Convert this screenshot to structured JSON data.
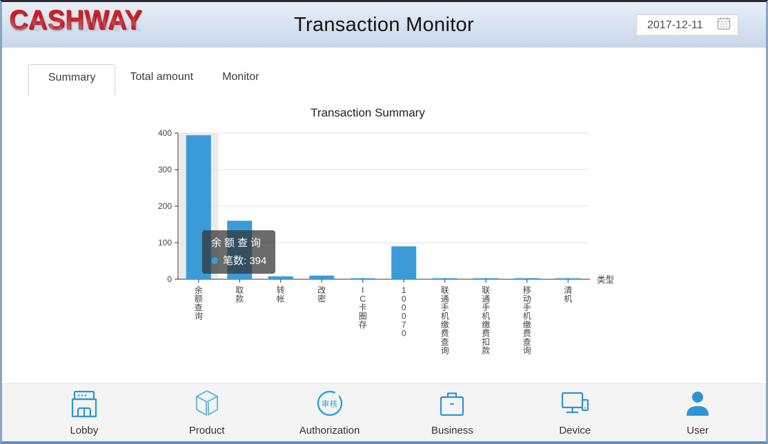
{
  "header": {
    "logo": "CASHWAY",
    "title": "Transaction Monitor",
    "date": "2017-12-11"
  },
  "tabs": [
    {
      "label": "Summary",
      "active": true
    },
    {
      "label": "Total amount",
      "active": false
    },
    {
      "label": "Monitor",
      "active": false
    }
  ],
  "chart_data": {
    "type": "bar",
    "title": "Transaction Summary",
    "categories": [
      "余额查询",
      "取款",
      "转帐",
      "改密",
      "IC卡圈存",
      "100070",
      "联通手机缴费查询",
      "联通手机缴费扣款",
      "移动手机缴费查询",
      "清机"
    ],
    "values": [
      394,
      160,
      8,
      10,
      2,
      90,
      2,
      2,
      3,
      1
    ],
    "series_name": "笔数",
    "xlabel": "类型",
    "ylabel": "",
    "ylim": [
      0,
      400
    ],
    "yticks": [
      0,
      100,
      200,
      300,
      400
    ],
    "grid": true,
    "legend": "none",
    "bar_color": "#3b9bd8",
    "highlight_index": 0
  },
  "tooltip": {
    "title": "余额查询",
    "text": "笔数: 394",
    "dot_color": "#3b9bd8"
  },
  "nav": {
    "items": [
      {
        "label": "Lobby",
        "icon": "storefront-icon"
      },
      {
        "label": "Product",
        "icon": "cube-icon"
      },
      {
        "label": "Authorization",
        "icon": "stamp-icon",
        "icon_text": "审核"
      },
      {
        "label": "Business",
        "icon": "briefcase-icon"
      },
      {
        "label": "Device",
        "icon": "monitor-icon"
      },
      {
        "label": "User",
        "icon": "person-icon"
      }
    ]
  },
  "colors": {
    "accent_blue": "#3b9bd8",
    "icon_blue": "#2e93d3",
    "icon_blue_light": "#7db9da",
    "logo_red": "#cd2027"
  }
}
